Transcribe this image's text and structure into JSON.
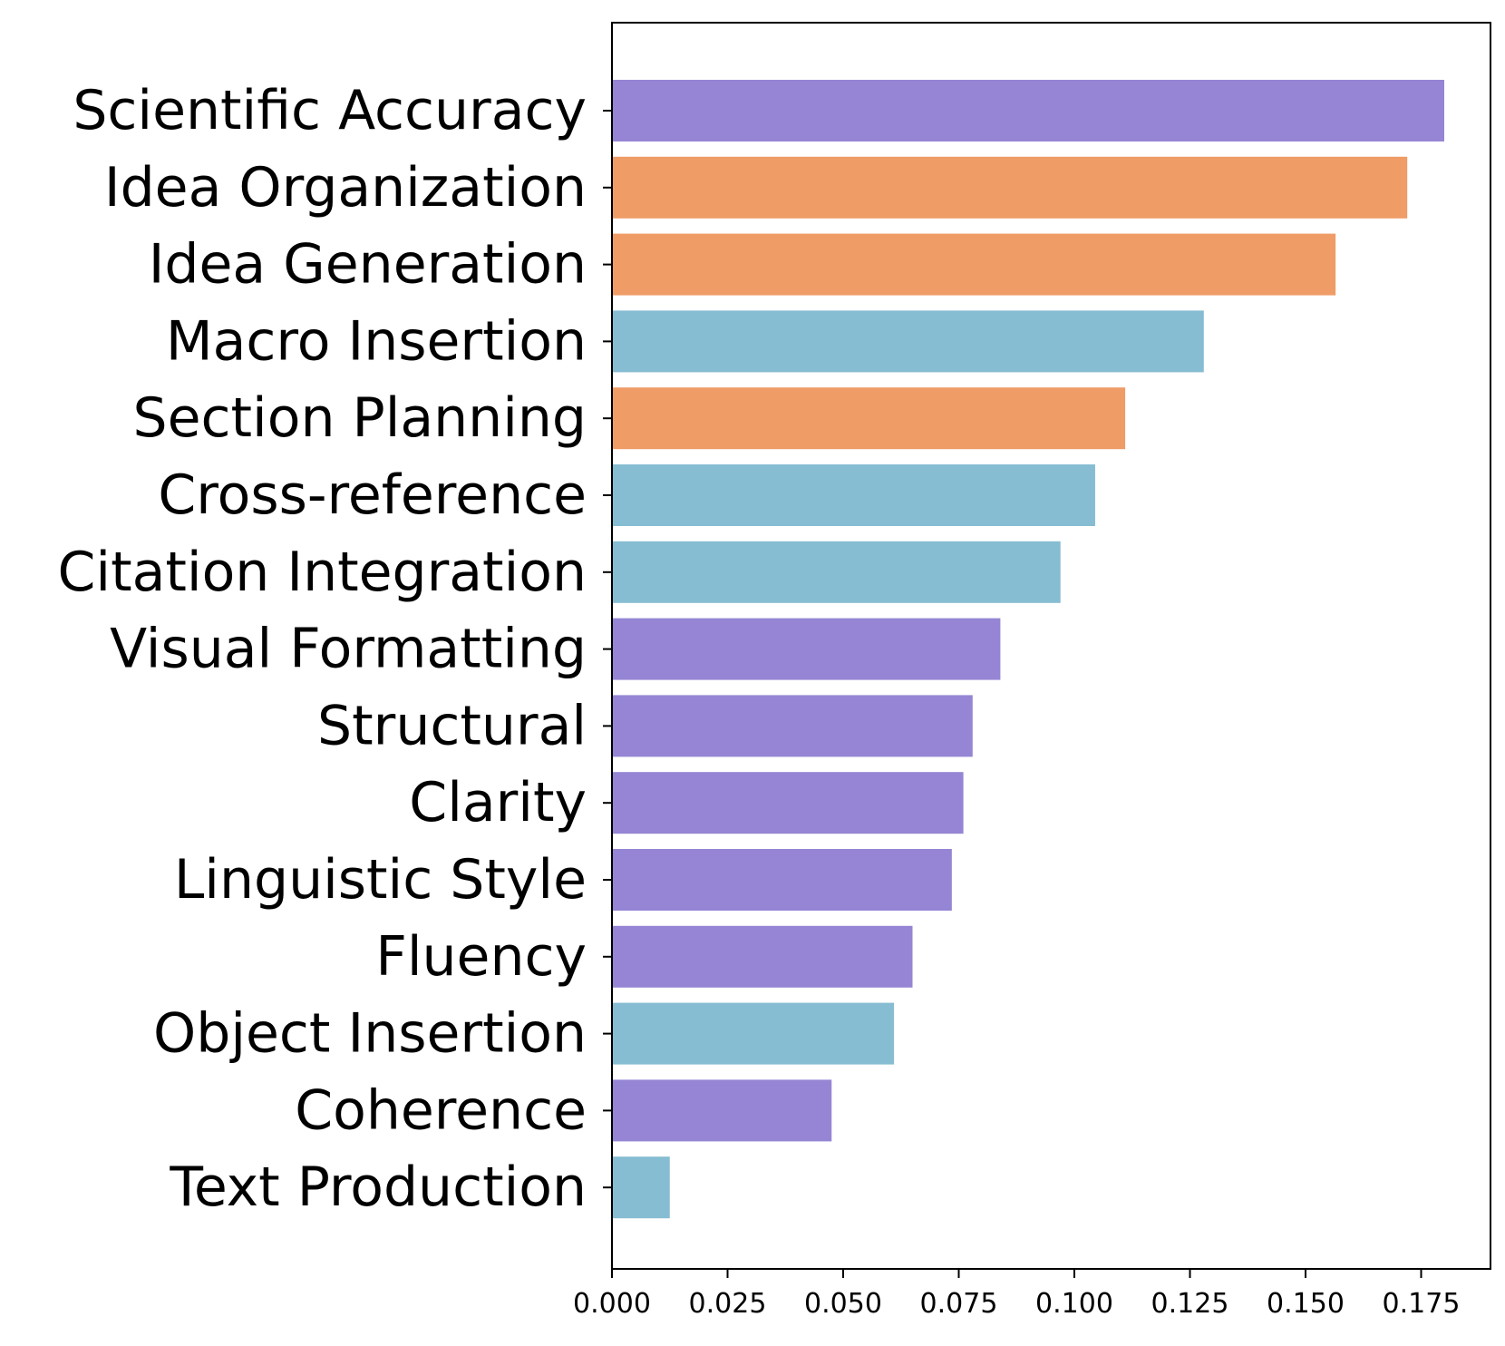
{
  "chart_data": {
    "type": "bar",
    "orientation": "horizontal",
    "title": "",
    "xlabel": "",
    "ylabel": "",
    "xlim": [
      0,
      0.19
    ],
    "grid": false,
    "legend": "none",
    "categories": [
      "Scientific Accuracy",
      "Idea Organization",
      "Idea Generation",
      "Macro Insertion",
      "Section Planning",
      "Cross-reference",
      "Citation Integration",
      "Visual Formatting",
      "Structural",
      "Clarity",
      "Linguistic Style",
      "Fluency",
      "Object Insertion",
      "Coherence",
      "Text Production"
    ],
    "values": [
      0.18,
      0.172,
      0.1565,
      0.128,
      0.111,
      0.1045,
      0.097,
      0.084,
      0.078,
      0.076,
      0.0735,
      0.065,
      0.061,
      0.0475,
      0.0125
    ],
    "bar_colors": [
      "#9585d4",
      "#ef9c67",
      "#ef9c67",
      "#86bdd2",
      "#ef9c67",
      "#86bdd2",
      "#86bdd2",
      "#9585d4",
      "#9585d4",
      "#9585d4",
      "#9585d4",
      "#9585d4",
      "#86bdd2",
      "#9585d4",
      "#86bdd2"
    ],
    "xticks": [
      0.0,
      0.025,
      0.05,
      0.075,
      0.1,
      0.125,
      0.15,
      0.175
    ],
    "xtick_labels": [
      "0.000",
      "0.025",
      "0.050",
      "0.075",
      "0.100",
      "0.125",
      "0.150",
      "0.175"
    ]
  }
}
